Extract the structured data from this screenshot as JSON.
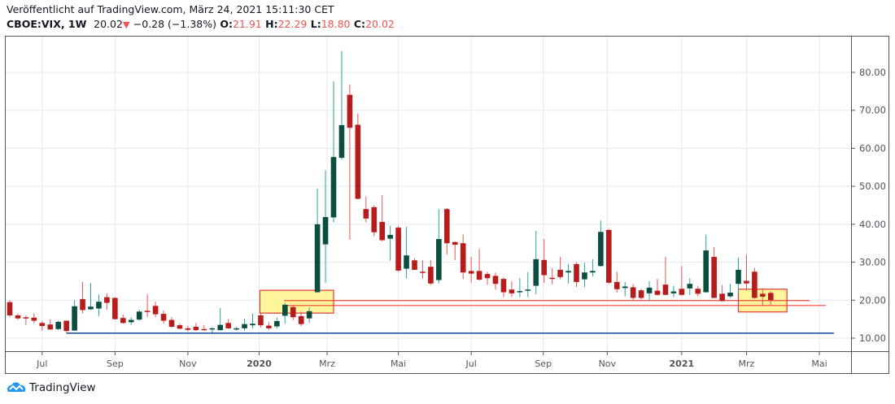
{
  "header": {
    "published": "Veröffentlicht auf TradingView.com, März 24, 2021 15:11:30 CET",
    "symbol": "CBOE:VIX, 1W",
    "last": "20.02",
    "change": "−0.28 (−1.38%)",
    "o_label": "O:",
    "o": "21.91",
    "h_label": "H:",
    "h": "22.29",
    "l_label": "L:",
    "l": "18.80",
    "c_label": "C:",
    "c": "20.02",
    "direction_icon": "triangle-down-icon"
  },
  "branding": {
    "logo_text": "TradingView",
    "icon": "tradingview-cloud-icon"
  },
  "colors": {
    "up_body": "#0b4d3e",
    "up_wick": "#26a69a",
    "down_body": "#b71c1c",
    "down_wick": "#ef5350",
    "support": "#0d47a1",
    "level": "#f44336",
    "highlight": "#fff59d",
    "highlight_border": "#e53935"
  },
  "chart_data": {
    "type": "candlestick",
    "title": "CBOE:VIX, 1W",
    "ylim": [
      7,
      89.5
    ],
    "y_ticks": [
      "10.00",
      "20.00",
      "30.00",
      "40.00",
      "50.00",
      "60.00",
      "70.00",
      "80.00"
    ],
    "x_ticks": [
      {
        "label": "Jul",
        "index": 4
      },
      {
        "label": "Sep",
        "index": 13
      },
      {
        "label": "Nov",
        "index": 22
      },
      {
        "label": "2020",
        "index": 30.8,
        "bold": true
      },
      {
        "label": "Mrz",
        "index": 39.2
      },
      {
        "label": "Mai",
        "index": 48
      },
      {
        "label": "Jul",
        "index": 57
      },
      {
        "label": "Sep",
        "index": 65.9
      },
      {
        "label": "Nov",
        "index": 73.8
      },
      {
        "label": "2021",
        "index": 83,
        "bold": true
      },
      {
        "label": "Mrz",
        "index": 91
      },
      {
        "label": "Mai",
        "index": 100
      }
    ],
    "ohlc": [
      [
        19.5,
        20,
        15.5,
        16
      ],
      [
        16,
        16.5,
        14.8,
        15.2
      ],
      [
        15.5,
        16,
        13.5,
        15.2
      ],
      [
        15.4,
        16.5,
        14,
        14.6
      ],
      [
        14,
        14.5,
        12,
        13.2
      ],
      [
        13.6,
        15,
        12.2,
        12.3
      ],
      [
        12.4,
        14.6,
        12.1,
        14.3
      ],
      [
        14.6,
        14.6,
        11.5,
        11.9
      ],
      [
        12,
        20,
        12,
        18.4
      ],
      [
        20.3,
        24.8,
        16.5,
        17.4
      ],
      [
        17.6,
        24.5,
        17.5,
        18.3
      ],
      [
        17.8,
        21.5,
        15.8,
        19.6
      ],
      [
        20.8,
        21.8,
        17.5,
        19.3
      ],
      [
        20.6,
        20.8,
        14.9,
        15
      ],
      [
        15.3,
        16.2,
        13.8,
        14
      ],
      [
        14.2,
        15.5,
        13.5,
        14.8
      ],
      [
        14.9,
        17.5,
        14.6,
        17
      ],
      [
        17.2,
        21.5,
        15.5,
        17.0
      ],
      [
        18.5,
        19.6,
        15.5,
        16.3
      ],
      [
        16.4,
        17.3,
        13.8,
        14.6
      ],
      [
        14.8,
        15.5,
        12.7,
        13
      ],
      [
        13.4,
        13.9,
        12.3,
        12.5
      ],
      [
        12.6,
        13.2,
        11.8,
        12.2
      ],
      [
        13,
        14,
        11.9,
        12.1
      ],
      [
        12.4,
        13.5,
        12,
        12.3
      ],
      [
        12.3,
        12.8,
        11.5,
        12.6
      ],
      [
        12.1,
        17.9,
        12,
        13.5
      ],
      [
        14,
        15,
        12.4,
        12.6
      ],
      [
        12.5,
        13,
        12,
        12.6
      ],
      [
        12.6,
        15.2,
        11.9,
        13.7
      ],
      [
        13.4,
        16.5,
        12.6,
        13.8
      ],
      [
        16,
        16.8,
        12.8,
        13.4
      ],
      [
        13.3,
        14.2,
        12.2,
        12.6
      ],
      [
        13.1,
        15.4,
        12.6,
        14.5
      ],
      [
        15.9,
        19.3,
        13.8,
        18.8
      ],
      [
        18.2,
        18.8,
        14.7,
        15.5
      ],
      [
        15.8,
        17,
        13.2,
        13.7
      ],
      [
        15.2,
        18.1,
        14,
        17.1
      ],
      [
        22.1,
        49.4,
        22,
        40
      ],
      [
        34.7,
        54.2,
        24.6,
        41.9
      ],
      [
        41.8,
        77.7,
        40.5,
        57.7
      ],
      [
        57.5,
        85.6,
        57,
        66.1
      ],
      [
        74.1,
        76.8,
        35.9,
        65.4
      ],
      [
        66.2,
        69.2,
        46.5,
        46.7
      ],
      [
        44,
        47.3,
        40.5,
        41.5
      ],
      [
        44.5,
        45,
        36.8,
        37.9
      ],
      [
        40.6,
        47.7,
        35.5,
        35.8
      ],
      [
        36.2,
        39.6,
        30.4,
        37.2
      ],
      [
        39.1,
        39.5,
        27.5,
        27.8
      ],
      [
        28.3,
        39.3,
        25.7,
        31.8
      ],
      [
        30.5,
        31,
        28,
        28
      ],
      [
        27.5,
        30.5,
        25.7,
        27.4
      ],
      [
        28.8,
        30.5,
        24,
        24.4
      ],
      [
        25.3,
        44,
        24.4,
        36.1
      ],
      [
        44,
        44.3,
        32,
        35
      ],
      [
        35.3,
        35.5,
        30.5,
        34.6
      ],
      [
        35,
        37.3,
        25.6,
        27.3
      ],
      [
        27.7,
        31.4,
        24.6,
        27
      ],
      [
        27.7,
        33.5,
        25.2,
        25.4
      ],
      [
        26.9,
        27.5,
        24,
        25.8
      ],
      [
        26.4,
        27.3,
        22.8,
        24.3
      ],
      [
        25.6,
        26,
        20.8,
        22.1
      ],
      [
        22.8,
        25,
        20.8,
        21.8
      ],
      [
        22.2,
        25.8,
        20.8,
        22.4
      ],
      [
        22.6,
        27.4,
        20.8,
        22.8
      ],
      [
        23.8,
        38.3,
        21.6,
        30.8
      ],
      [
        30.6,
        36.1,
        24.5,
        26.6
      ],
      [
        25.9,
        28.4,
        24.2,
        25.8
      ],
      [
        28,
        31.4,
        25.5,
        26.1
      ],
      [
        27.3,
        29.5,
        24.4,
        27.7
      ],
      [
        29.5,
        30,
        23.5,
        24.8
      ],
      [
        25.5,
        29.9,
        23.4,
        27.3
      ],
      [
        27.3,
        30.8,
        26.2,
        27.7
      ],
      [
        29,
        41,
        28.8,
        38
      ],
      [
        38.5,
        38.8,
        24.3,
        24.6
      ],
      [
        24.8,
        27.5,
        22,
        22.9
      ],
      [
        23.2,
        24.8,
        21,
        23.6
      ],
      [
        23.4,
        24.2,
        19.9,
        20.6
      ],
      [
        22.6,
        23,
        20.2,
        20.6
      ],
      [
        21.8,
        25,
        19.8,
        23.3
      ],
      [
        22.5,
        25.6,
        21.2,
        21.4
      ],
      [
        24.1,
        31.5,
        21.3,
        21.4
      ],
      [
        21.8,
        23.8,
        20.8,
        22.3
      ],
      [
        23,
        29,
        21.2,
        21.4
      ],
      [
        23.1,
        25.8,
        21.4,
        24.3
      ],
      [
        23,
        23.8,
        21,
        21.7
      ],
      [
        22.1,
        37.3,
        22,
        33.1
      ],
      [
        31.4,
        34,
        20.6,
        20.6
      ],
      [
        21.7,
        24,
        19.6,
        19.8
      ],
      [
        21,
        24.3,
        20.6,
        22
      ],
      [
        24.3,
        31.2,
        22,
        28
      ],
      [
        25.1,
        32,
        22.5,
        24.4
      ],
      [
        27.5,
        28.5,
        20.4,
        20.6
      ],
      [
        21.7,
        23.2,
        18.6,
        20.9
      ],
      [
        21.91,
        22.29,
        18.8,
        20.02
      ]
    ],
    "annotations": {
      "support_line": {
        "value": 11.3,
        "from_index": 7,
        "to_index": 101.8
      },
      "levels": [
        {
          "value": 19.9,
          "from_index": 33.9,
          "to_index": 98.8
        },
        {
          "value": 18.6,
          "from_index": 33.9,
          "to_index": 100.8
        }
      ],
      "boxes": [
        {
          "from_index": 30.9,
          "to_index": 40,
          "top": 22.6,
          "bottom": 16.6
        },
        {
          "from_index": 90,
          "to_index": 96,
          "top": 22.9,
          "bottom": 16.9
        }
      ]
    }
  }
}
